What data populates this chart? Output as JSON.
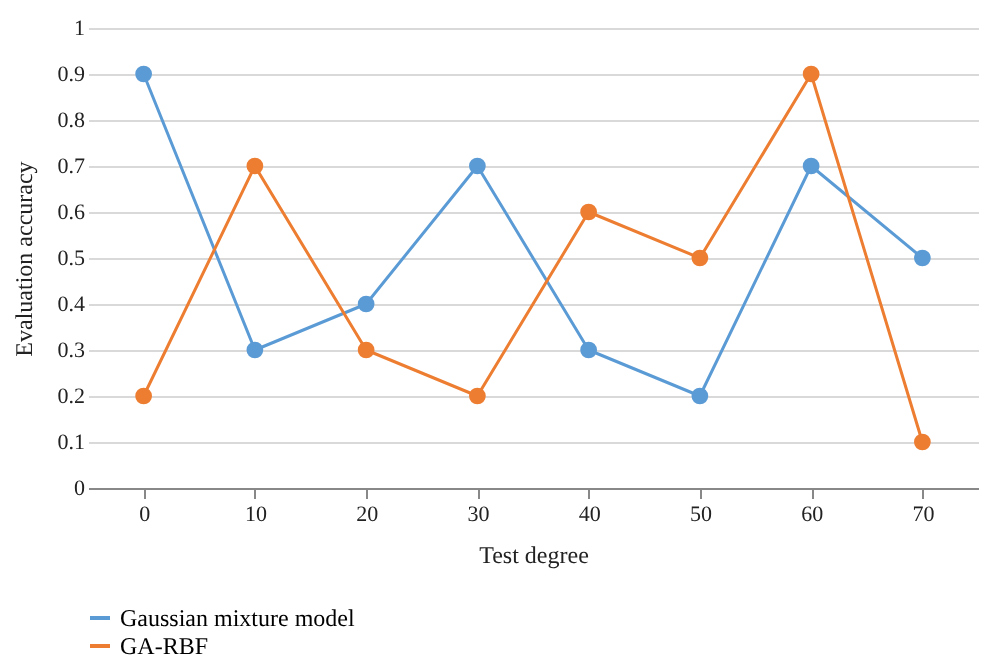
{
  "chart_data": {
    "type": "line",
    "xlabel": "Test degree",
    "ylabel": "Evaluation accuracy",
    "categories": [
      "0",
      "10",
      "20",
      "30",
      "40",
      "50",
      "60",
      "70"
    ],
    "series": [
      {
        "name": "Gaussian mixture model",
        "color": "#5b9bd5",
        "values": [
          0.9,
          0.3,
          0.4,
          0.7,
          0.3,
          0.2,
          0.7,
          0.5
        ]
      },
      {
        "name": "GA-RBF",
        "color": "#ed7d31",
        "values": [
          0.2,
          0.7,
          0.3,
          0.2,
          0.6,
          0.5,
          0.9,
          0.1
        ]
      }
    ],
    "ylim": [
      0,
      1
    ],
    "yticks": [
      0,
      0.1,
      0.2,
      0.3,
      0.4,
      0.5,
      0.6,
      0.7,
      0.8,
      0.9,
      1
    ],
    "grid": "y",
    "legend": "bottom left",
    "marker": "circle",
    "line_style": "solid"
  }
}
